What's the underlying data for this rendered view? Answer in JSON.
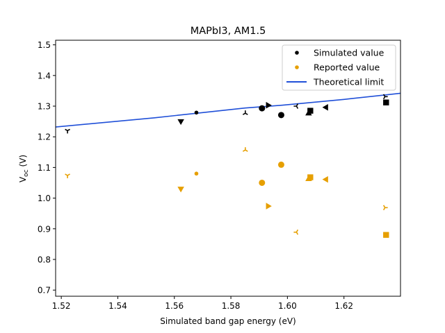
{
  "chart_data": {
    "type": "scatter",
    "title": "MAPbI3, AM1.5",
    "xlabel": "Simulated band gap energy (eV)",
    "ylabel_main": "V",
    "ylabel_sub": "oc",
    "ylabel_unit": " (V)",
    "xlim": [
      1.518,
      1.64
    ],
    "ylim": [
      0.68,
      1.515
    ],
    "xticks": [
      1.52,
      1.54,
      1.56,
      1.58,
      1.6,
      1.62
    ],
    "xtick_labels": [
      "1.52",
      "1.54",
      "1.56",
      "1.58",
      "1.60",
      "1.62"
    ],
    "yticks": [
      0.7,
      0.8,
      0.9,
      1.0,
      1.1,
      1.2,
      1.3,
      1.4,
      1.5
    ],
    "ytick_labels": [
      "0.7",
      "0.8",
      "0.9",
      "1.0",
      "1.1",
      "1.2",
      "1.3",
      "1.4",
      "1.5"
    ],
    "grid": false,
    "legend_position": "top-right",
    "legend": [
      {
        "label": "Simulated value",
        "kind": "marker",
        "color": "#000000"
      },
      {
        "label": "Reported value",
        "kind": "marker",
        "color": "#e69f00"
      },
      {
        "label": "Theoretical limit",
        "kind": "line",
        "color": "#1f4fd8"
      }
    ],
    "series": [
      {
        "name": "Theoretical limit",
        "kind": "line",
        "color": "#1f4fd8",
        "x": [
          1.518,
          1.553,
          1.568,
          1.585,
          1.598,
          1.605,
          1.62,
          1.635,
          1.64
        ],
        "y": [
          1.232,
          1.262,
          1.277,
          1.294,
          1.303,
          1.309,
          1.322,
          1.337,
          1.342
        ]
      },
      {
        "name": "Simulated value",
        "kind": "scatter",
        "color": "#000000",
        "points": [
          {
            "x": 1.5222,
            "y": 1.22,
            "marker": "tri_down"
          },
          {
            "x": 1.5623,
            "y": 1.251,
            "marker": "triangle_down"
          },
          {
            "x": 1.5678,
            "y": 1.279,
            "marker": "point"
          },
          {
            "x": 1.5851,
            "y": 1.277,
            "marker": "tri_up"
          },
          {
            "x": 1.591,
            "y": 1.293,
            "marker": "circle"
          },
          {
            "x": 1.5931,
            "y": 1.303,
            "marker": "triangle_right"
          },
          {
            "x": 1.5978,
            "y": 1.271,
            "marker": "circle"
          },
          {
            "x": 1.6032,
            "y": 1.3,
            "marker": "tri_left"
          },
          {
            "x": 1.6075,
            "y": 1.276,
            "marker": "triangle_up"
          },
          {
            "x": 1.6081,
            "y": 1.285,
            "marker": "square"
          },
          {
            "x": 1.6137,
            "y": 1.296,
            "marker": "triangle_left"
          },
          {
            "x": 1.6345,
            "y": 1.331,
            "marker": "tri_right"
          },
          {
            "x": 1.6349,
            "y": 1.312,
            "marker": "square"
          }
        ]
      },
      {
        "name": "Reported value",
        "kind": "scatter",
        "color": "#e69f00",
        "points": [
          {
            "x": 1.5222,
            "y": 1.074,
            "marker": "tri_down"
          },
          {
            "x": 1.5623,
            "y": 1.031,
            "marker": "triangle_down"
          },
          {
            "x": 1.5678,
            "y": 1.08,
            "marker": "point"
          },
          {
            "x": 1.5851,
            "y": 1.157,
            "marker": "tri_up"
          },
          {
            "x": 1.591,
            "y": 1.05,
            "marker": "circle"
          },
          {
            "x": 1.5931,
            "y": 0.974,
            "marker": "triangle_right"
          },
          {
            "x": 1.5978,
            "y": 1.109,
            "marker": "circle"
          },
          {
            "x": 1.6032,
            "y": 0.889,
            "marker": "tri_left"
          },
          {
            "x": 1.6075,
            "y": 1.062,
            "marker": "triangle_up"
          },
          {
            "x": 1.6081,
            "y": 1.068,
            "marker": "square"
          },
          {
            "x": 1.6137,
            "y": 1.061,
            "marker": "triangle_left"
          },
          {
            "x": 1.6345,
            "y": 0.969,
            "marker": "tri_right"
          },
          {
            "x": 1.6349,
            "y": 0.88,
            "marker": "square"
          }
        ]
      }
    ]
  }
}
